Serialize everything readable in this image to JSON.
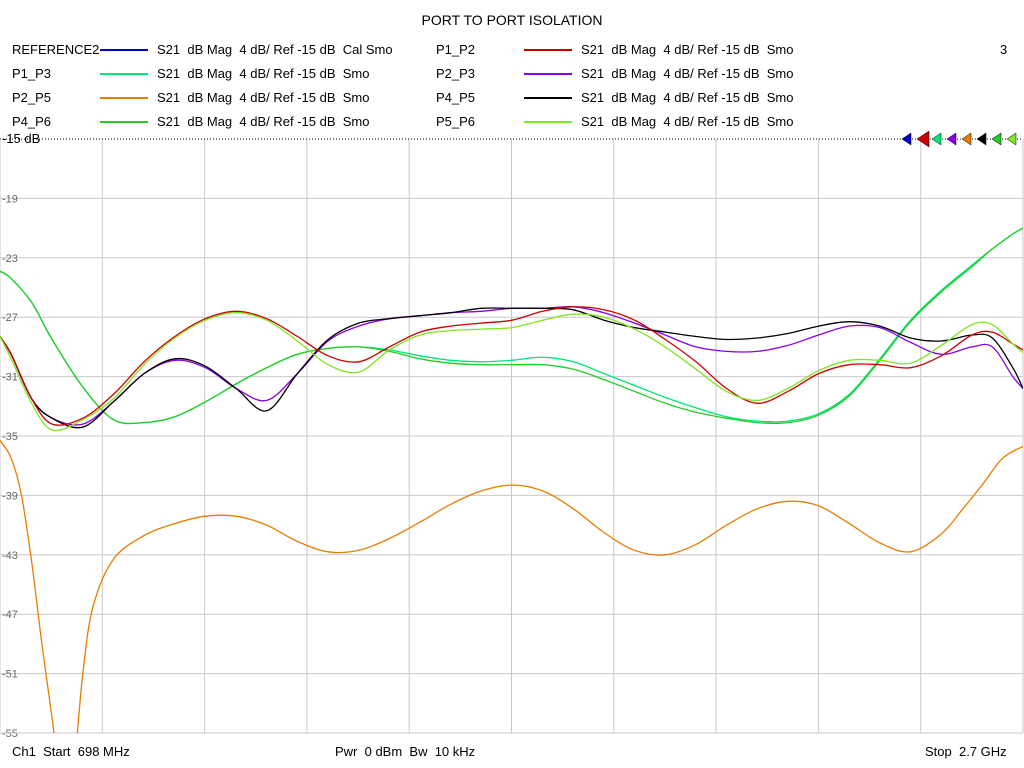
{
  "chart_data": {
    "type": "line",
    "title": "PORT TO PORT ISOLATION",
    "channel_number": "3",
    "ylim": [
      -55,
      -15
    ],
    "ytick_labels": [
      "-15 dB",
      "-19",
      "-23",
      "-27",
      "-31",
      "-35",
      "-39",
      "-43",
      "-47",
      "-51",
      "-55"
    ],
    "x_start_label": "Ch1  Start  698 MHz",
    "x_stop_label": "Stop  2.7 GHz",
    "sweep_settings": "Pwr  0 dBm  Bw  10 kHz",
    "x_range_mhz": [
      698,
      2700
    ],
    "grid": true,
    "legend_position": "top",
    "series": [
      {
        "name": "REFERENCE2",
        "format": "S21  dB Mag  4 dB/ Ref -15 dB  Cal Smo",
        "color": "#0000cc",
        "x": [],
        "y": []
      },
      {
        "name": "P1_P2",
        "format": "S21  dB Mag  4 dB/ Ref -15 dB  Smo",
        "color": "#cc0000",
        "x": [
          698,
          720,
          760,
          800,
          860,
          920,
          980,
          1040,
          1100,
          1160,
          1220,
          1280,
          1340,
          1400,
          1460,
          1520,
          1580,
          1640,
          1700,
          1760,
          1820,
          1880,
          1940,
          2000,
          2060,
          2120,
          2180,
          2240,
          2300,
          2360,
          2420,
          2480,
          2540,
          2600,
          2640,
          2680,
          2700
        ],
        "y": [
          -28.3,
          -29.5,
          -32.5,
          -34.2,
          -33.8,
          -32.2,
          -30.0,
          -28.3,
          -27.1,
          -26.6,
          -27.1,
          -28.3,
          -29.6,
          -30.0,
          -29.0,
          -28.0,
          -27.6,
          -27.4,
          -27.2,
          -26.6,
          -26.3,
          -26.5,
          -27.2,
          -28.5,
          -30.0,
          -31.8,
          -32.8,
          -32.0,
          -30.8,
          -30.2,
          -30.2,
          -30.4,
          -29.6,
          -28.2,
          -28.0,
          -28.8,
          -29.2
        ]
      },
      {
        "name": "P1_P3",
        "format": "S21  dB Mag  4 dB/ Ref -15 dB  Smo",
        "color": "#00e676",
        "x": [
          698,
          720,
          760,
          800,
          860,
          920,
          980,
          1040,
          1100,
          1160,
          1220,
          1280,
          1340,
          1400,
          1460,
          1520,
          1580,
          1640,
          1700,
          1760,
          1820,
          1880,
          1940,
          2000,
          2060,
          2120,
          2180,
          2240,
          2300,
          2360,
          2420,
          2480,
          2540,
          2600,
          2640,
          2680,
          2700
        ],
        "y": [
          -23.9,
          -24.4,
          -26.0,
          -28.5,
          -31.7,
          -33.9,
          -34.1,
          -33.7,
          -32.7,
          -31.5,
          -30.4,
          -29.5,
          -29.1,
          -29.0,
          -29.2,
          -29.6,
          -29.9,
          -30.0,
          -29.9,
          -29.7,
          -30.0,
          -30.8,
          -31.6,
          -32.4,
          -33.1,
          -33.7,
          -34.0,
          -34.0,
          -33.5,
          -32.2,
          -29.8,
          -27.2,
          -25.2,
          -23.5,
          -22.4,
          -21.4,
          -21.0
        ]
      },
      {
        "name": "P2_P3",
        "format": "S21  dB Mag  4 dB/ Ref -15 dB  Smo",
        "color": "#8a00e6",
        "x": [
          698,
          720,
          760,
          800,
          860,
          920,
          980,
          1040,
          1100,
          1160,
          1220,
          1280,
          1340,
          1400,
          1460,
          1520,
          1580,
          1640,
          1700,
          1760,
          1820,
          1880,
          1940,
          2000,
          2060,
          2120,
          2180,
          2240,
          2300,
          2360,
          2420,
          2480,
          2540,
          2600,
          2640,
          2680,
          2700
        ],
        "y": [
          -28.3,
          -29.5,
          -32.5,
          -33.8,
          -34.2,
          -32.7,
          -30.8,
          -29.9,
          -30.4,
          -31.8,
          -32.6,
          -30.8,
          -28.6,
          -27.6,
          -27.1,
          -26.9,
          -26.7,
          -26.6,
          -26.4,
          -26.4,
          -26.3,
          -26.7,
          -27.4,
          -28.2,
          -29.0,
          -29.3,
          -29.3,
          -28.9,
          -28.2,
          -27.6,
          -27.7,
          -28.7,
          -29.5,
          -29.0,
          -29.0,
          -31.0,
          -31.8
        ]
      },
      {
        "name": "P2_P5",
        "format": "S21  dB Mag  4 dB/ Ref -15 dB  Smo",
        "color": "#e67e00",
        "x": [
          698,
          720,
          740,
          760,
          780,
          800,
          820,
          840,
          860,
          880,
          920,
          980,
          1040,
          1100,
          1160,
          1220,
          1280,
          1340,
          1400,
          1460,
          1520,
          1580,
          1640,
          1700,
          1760,
          1820,
          1880,
          1940,
          2000,
          2060,
          2120,
          2180,
          2240,
          2300,
          2360,
          2420,
          2480,
          2540,
          2580,
          2620,
          2660,
          2700
        ],
        "y": [
          -35.3,
          -36.5,
          -39.0,
          -43.5,
          -49.0,
          -54.0,
          -59.0,
          -58.0,
          -51.0,
          -46.5,
          -43.3,
          -41.7,
          -40.9,
          -40.4,
          -40.4,
          -41.0,
          -42.1,
          -42.8,
          -42.7,
          -41.9,
          -40.8,
          -39.6,
          -38.7,
          -38.3,
          -38.7,
          -39.9,
          -41.5,
          -42.7,
          -43.0,
          -42.3,
          -41.0,
          -39.9,
          -39.4,
          -39.7,
          -40.9,
          -42.2,
          -42.8,
          -41.6,
          -40.0,
          -38.3,
          -36.5,
          -35.7
        ]
      },
      {
        "name": "P4_P5",
        "format": "S21  dB Mag  4 dB/ Ref -15 dB  Smo",
        "color": "#000000",
        "x": [
          698,
          720,
          760,
          800,
          860,
          920,
          980,
          1040,
          1100,
          1160,
          1220,
          1280,
          1340,
          1400,
          1460,
          1520,
          1580,
          1640,
          1700,
          1760,
          1820,
          1880,
          1940,
          2000,
          2060,
          2120,
          2180,
          2240,
          2300,
          2360,
          2420,
          2480,
          2540,
          2600,
          2640,
          2680,
          2700
        ],
        "y": [
          -28.3,
          -29.5,
          -32.5,
          -33.8,
          -34.4,
          -32.7,
          -30.8,
          -29.8,
          -30.3,
          -31.8,
          -33.3,
          -30.8,
          -28.5,
          -27.4,
          -27.1,
          -26.9,
          -26.7,
          -26.4,
          -26.4,
          -26.4,
          -26.5,
          -27.2,
          -27.7,
          -28.0,
          -28.3,
          -28.5,
          -28.4,
          -28.1,
          -27.6,
          -27.3,
          -27.6,
          -28.4,
          -28.6,
          -28.2,
          -28.4,
          -30.4,
          -31.8
        ]
      },
      {
        "name": "P4_P6",
        "format": "S21  dB Mag  4 dB/ Ref -15 dB  Smo",
        "color": "#22cc22",
        "x": [
          698,
          720,
          760,
          800,
          860,
          920,
          980,
          1040,
          1100,
          1160,
          1220,
          1280,
          1340,
          1400,
          1460,
          1520,
          1580,
          1640,
          1700,
          1760,
          1820,
          1880,
          1940,
          2000,
          2060,
          2120,
          2180,
          2240,
          2300,
          2360,
          2420,
          2480,
          2540,
          2600,
          2640,
          2680,
          2700
        ],
        "y": [
          -23.9,
          -24.4,
          -26.0,
          -28.5,
          -31.7,
          -33.9,
          -34.1,
          -33.7,
          -32.7,
          -31.5,
          -30.4,
          -29.5,
          -29.1,
          -29.0,
          -29.3,
          -29.8,
          -30.1,
          -30.2,
          -30.2,
          -30.2,
          -30.5,
          -31.2,
          -32.0,
          -32.8,
          -33.4,
          -33.8,
          -34.1,
          -34.1,
          -33.6,
          -32.3,
          -29.9,
          -27.3,
          -25.3,
          -23.6,
          -22.4,
          -21.4,
          -21.0
        ]
      },
      {
        "name": "P5_P6",
        "format": "S21  dB Mag  4 dB/ Ref -15 dB  Smo",
        "color": "#80e620",
        "x": [
          698,
          720,
          760,
          800,
          860,
          920,
          980,
          1040,
          1100,
          1160,
          1220,
          1280,
          1340,
          1400,
          1460,
          1520,
          1580,
          1640,
          1700,
          1760,
          1820,
          1880,
          1940,
          2000,
          2060,
          2120,
          2180,
          2240,
          2300,
          2360,
          2420,
          2480,
          2540,
          2600,
          2640,
          2680,
          2700
        ],
        "y": [
          -28.3,
          -29.8,
          -32.8,
          -34.6,
          -33.9,
          -32.5,
          -30.2,
          -28.4,
          -27.2,
          -26.7,
          -27.2,
          -28.6,
          -30.2,
          -30.7,
          -29.2,
          -28.2,
          -27.9,
          -27.8,
          -27.7,
          -27.2,
          -26.8,
          -27.0,
          -27.8,
          -29.0,
          -30.5,
          -32.0,
          -32.6,
          -31.8,
          -30.6,
          -29.9,
          -29.9,
          -30.1,
          -28.9,
          -27.5,
          -27.5,
          -28.8,
          -29.4
        ]
      }
    ]
  }
}
